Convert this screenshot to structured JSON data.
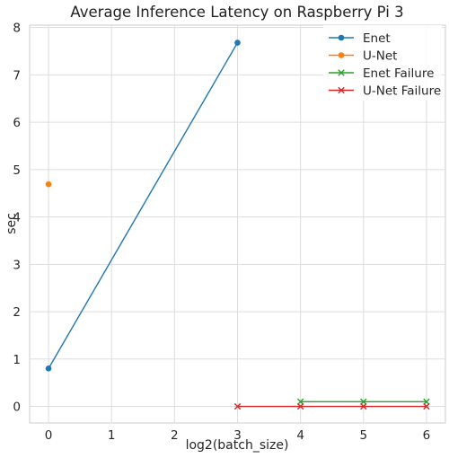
{
  "chart_data": {
    "type": "line",
    "title": "Average Inference Latency on Raspberry Pi 3",
    "xlabel": "log2(batch_size)",
    "ylabel": "sec",
    "xlim": [
      -0.3,
      6.3
    ],
    "ylim": [
      -0.35,
      8.05
    ],
    "xticks": [
      0,
      1,
      2,
      3,
      4,
      5,
      6
    ],
    "yticks": [
      0,
      1,
      2,
      3,
      4,
      5,
      6,
      7,
      8
    ],
    "grid": true,
    "legend_position": "top-right",
    "series": [
      {
        "name": "Enet",
        "marker": "circle",
        "color": "#1f77b4",
        "x": [
          0,
          3
        ],
        "y": [
          0.8,
          7.68
        ]
      },
      {
        "name": "U-Net",
        "marker": "circle",
        "color": "#ff7f0e",
        "x": [
          0
        ],
        "y": [
          4.69
        ]
      },
      {
        "name": "Enet Failure",
        "marker": "x",
        "color": "#2ca02c",
        "x": [
          4,
          5,
          6
        ],
        "y": [
          0.1,
          0.1,
          0.1
        ]
      },
      {
        "name": "U-Net Failure",
        "marker": "x",
        "color": "#d62728",
        "x": [
          3,
          4,
          5,
          6
        ],
        "y": [
          0.0,
          0.0,
          0.0,
          0.0
        ]
      }
    ]
  }
}
